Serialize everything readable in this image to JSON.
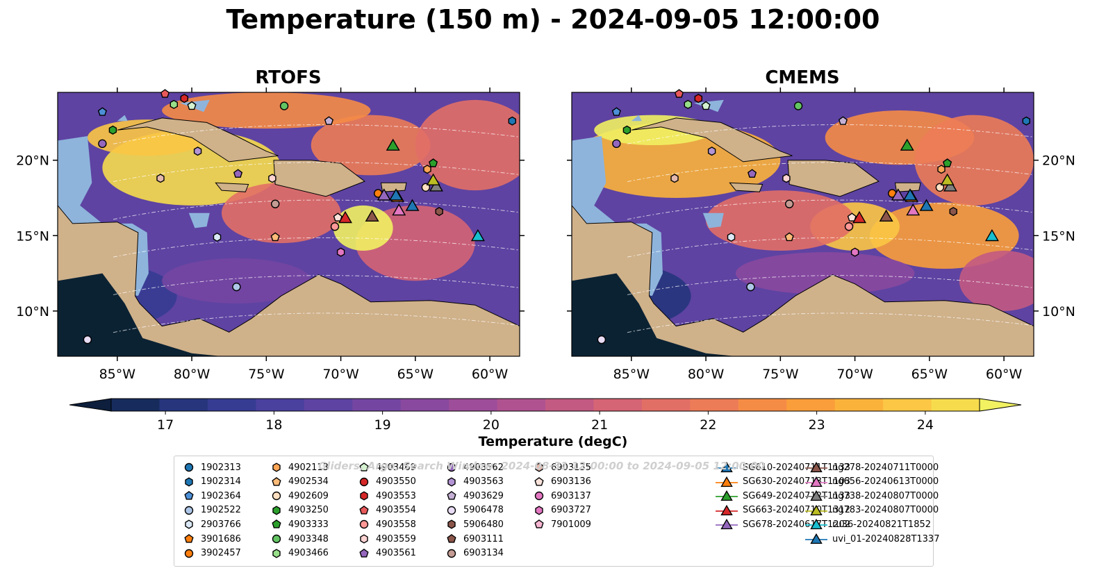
{
  "title": "Temperature (150 m) - 2024-09-05 12:00:00",
  "panels": [
    {
      "title": "RTOFS"
    },
    {
      "title": "CMEMS"
    }
  ],
  "lon_ticks": [
    "85°W",
    "80°W",
    "75°W",
    "70°W",
    "65°W",
    "60°W"
  ],
  "lat_ticks": [
    "20°N",
    "15°N",
    "10°N"
  ],
  "map_extent": {
    "lon": [
      -89,
      -58
    ],
    "lat": [
      7,
      24.5
    ]
  },
  "colorbar": {
    "label": "Temperature (degC)",
    "ticks": [
      "17",
      "18",
      "19",
      "20",
      "21",
      "22",
      "23",
      "24"
    ],
    "range": [
      16.5,
      24.5
    ],
    "colors": [
      "#0d1f3c",
      "#172c5c",
      "#26357c",
      "#363c92",
      "#4a409d",
      "#5e43a2",
      "#7446a2",
      "#89499f",
      "#9d4d99",
      "#b05290",
      "#c25a82",
      "#d56474",
      "#e26f66",
      "#ec7c57",
      "#f58c46",
      "#f99e3b",
      "#fbb23b",
      "#fbc745",
      "#f6dc4d",
      "#f1f162"
    ]
  },
  "watermark": "Gliders, Argo, Search Window: 2024-08-31 12:00:00 to 2024-09-05 12:00:00",
  "legend": [
    {
      "label": "1902313",
      "marker": "circle",
      "color": "#1f77b4"
    },
    {
      "label": "1902314",
      "marker": "hexagon",
      "color": "#1f77b4"
    },
    {
      "label": "1902364",
      "marker": "pentagon",
      "color": "#4c8fd6"
    },
    {
      "label": "1902522",
      "marker": "circle",
      "color": "#aec7e8"
    },
    {
      "label": "2903766",
      "marker": "hexagon",
      "color": "#dbe9f6"
    },
    {
      "label": "3901686",
      "marker": "pentagon",
      "color": "#ff7f0e"
    },
    {
      "label": "3902457",
      "marker": "circle",
      "color": "#ff7f0e"
    },
    {
      "label": "4902113",
      "marker": "hexagon",
      "color": "#ffa556"
    },
    {
      "label": "4902534",
      "marker": "pentagon",
      "color": "#ffbb78"
    },
    {
      "label": "4902609",
      "marker": "circle",
      "color": "#ffe0c2"
    },
    {
      "label": "4903250",
      "marker": "hexagon",
      "color": "#2ca02c"
    },
    {
      "label": "4903333",
      "marker": "pentagon",
      "color": "#2ca02c"
    },
    {
      "label": "4903348",
      "marker": "circle",
      "color": "#63c463"
    },
    {
      "label": "4903466",
      "marker": "hexagon",
      "color": "#98df8a"
    },
    {
      "label": "4903469",
      "marker": "pentagon",
      "color": "#d5f2d0"
    },
    {
      "label": "4903550",
      "marker": "circle",
      "color": "#d62728"
    },
    {
      "label": "4903553",
      "marker": "hexagon",
      "color": "#d62728"
    },
    {
      "label": "4903554",
      "marker": "pentagon",
      "color": "#e8595a"
    },
    {
      "label": "4903558",
      "marker": "circle",
      "color": "#ff9896"
    },
    {
      "label": "4903559",
      "marker": "hexagon",
      "color": "#ffd4d3"
    },
    {
      "label": "4903561",
      "marker": "pentagon",
      "color": "#9467bd"
    },
    {
      "label": "4903562",
      "marker": "circle",
      "color": "#9467bd"
    },
    {
      "label": "4903563",
      "marker": "hexagon",
      "color": "#b394d4"
    },
    {
      "label": "4903629",
      "marker": "pentagon",
      "color": "#c5b0d5"
    },
    {
      "label": "5906478",
      "marker": "circle",
      "color": "#e9ddf5"
    },
    {
      "label": "5906480",
      "marker": "hexagon",
      "color": "#8c564b"
    },
    {
      "label": "6903111",
      "marker": "pentagon",
      "color": "#8c564b"
    },
    {
      "label": "6903134",
      "marker": "circle",
      "color": "#c49c94"
    },
    {
      "label": "6903135",
      "marker": "hexagon",
      "color": "#e3b8ad"
    },
    {
      "label": "6903136",
      "marker": "pentagon",
      "color": "#fbe3dc"
    },
    {
      "label": "6903137",
      "marker": "circle",
      "color": "#e377c2"
    },
    {
      "label": "6903727",
      "marker": "hexagon",
      "color": "#e377c2"
    },
    {
      "label": "7901009",
      "marker": "pentagon",
      "color": "#f7b6d2"
    },
    {
      "label": "SG610-20240711T1133",
      "marker": "triangle",
      "color": "#1f77b4"
    },
    {
      "label": "SG630-20240713T1103",
      "marker": "triangle",
      "color": "#ff7f0e"
    },
    {
      "label": "SG649-20240712T1133",
      "marker": "triangle",
      "color": "#2ca02c"
    },
    {
      "label": "SG663-20240710T1312",
      "marker": "triangle",
      "color": "#d62728"
    },
    {
      "label": "SG678-20240617T1202",
      "marker": "triangle",
      "color": "#9467bd"
    },
    {
      "label": "ng278-20240711T0000",
      "marker": "triangle",
      "color": "#8c564b"
    },
    {
      "label": "ng656-20240613T0000",
      "marker": "triangle",
      "color": "#e377c2"
    },
    {
      "label": "ng738-20240807T0000",
      "marker": "triangle",
      "color": "#7f7f7f"
    },
    {
      "label": "ng783-20240807T0000",
      "marker": "triangle",
      "color": "#bcbd22"
    },
    {
      "label": "ru36-20240821T1852",
      "marker": "triangle",
      "color": "#17becf"
    },
    {
      "label": "uvi_01-20240828T1337",
      "marker": "triangle",
      "color": "#1f77b4"
    }
  ],
  "stations": [
    {
      "label": "1902314",
      "lon": -58.5,
      "lat": 22.6
    },
    {
      "label": "1902364",
      "lon": -86.0,
      "lat": 23.2
    },
    {
      "label": "1902522",
      "lon": -77.0,
      "lat": 11.6
    },
    {
      "label": "2903766",
      "lon": -78.3,
      "lat": 14.9
    },
    {
      "label": "3902457",
      "lon": -67.5,
      "lat": 17.8
    },
    {
      "label": "4902113",
      "lon": -64.2,
      "lat": 19.4
    },
    {
      "label": "4902534",
      "lon": -74.4,
      "lat": 14.9
    },
    {
      "label": "4902609",
      "lon": -64.3,
      "lat": 18.2
    },
    {
      "label": "4903250",
      "lon": -85.3,
      "lat": 22.0
    },
    {
      "label": "4903333",
      "lon": -63.8,
      "lat": 19.8
    },
    {
      "label": "4903348",
      "lon": -73.8,
      "lat": 23.6
    },
    {
      "label": "4903466",
      "lon": -81.2,
      "lat": 23.7
    },
    {
      "label": "4903469",
      "lon": -80.0,
      "lat": 23.6
    },
    {
      "label": "4903553",
      "lon": -80.5,
      "lat": 24.1
    },
    {
      "label": "4903554",
      "lon": -81.8,
      "lat": 24.4
    },
    {
      "label": "4903558",
      "lon": -70.4,
      "lat": 15.6
    },
    {
      "label": "4903559",
      "lon": -74.6,
      "lat": 18.8
    },
    {
      "label": "4903561",
      "lon": -76.9,
      "lat": 19.1
    },
    {
      "label": "4903562",
      "lon": -86.0,
      "lat": 21.1
    },
    {
      "label": "4903563",
      "lon": -79.6,
      "lat": 20.6
    },
    {
      "label": "4903629",
      "lon": -70.8,
      "lat": 22.6
    },
    {
      "label": "5906478",
      "lon": -87.0,
      "lat": 8.1
    },
    {
      "label": "5906480",
      "lon": -63.4,
      "lat": 16.6
    },
    {
      "label": "6903134",
      "lon": -74.4,
      "lat": 17.1
    },
    {
      "label": "6903135",
      "lon": -82.1,
      "lat": 18.8
    },
    {
      "label": "6903136",
      "lon": -70.2,
      "lat": 16.2
    },
    {
      "label": "6903727",
      "lon": -70.0,
      "lat": 13.9
    },
    {
      "label": "SG610-20240711T1133",
      "lon": -65.2,
      "lat": 16.9
    },
    {
      "label": "SG630-20240713T1103",
      "lon": -66.2,
      "lat": 17.5
    },
    {
      "label": "SG649-20240712T1133",
      "lon": -66.5,
      "lat": 20.9
    },
    {
      "label": "SG663-20240710T1312",
      "lon": -69.7,
      "lat": 16.1
    },
    {
      "label": "SG678-20240617T1202",
      "lon": -67.1,
      "lat": 17.6
    },
    {
      "label": "ng278-20240711T0000",
      "lon": -67.9,
      "lat": 16.2
    },
    {
      "label": "ng656-20240613T0000",
      "lon": -66.1,
      "lat": 16.6
    },
    {
      "label": "ng738-20240807T0000",
      "lon": -63.6,
      "lat": 18.2
    },
    {
      "label": "ng783-20240807T0000",
      "lon": -63.8,
      "lat": 18.6
    },
    {
      "label": "ru36-20240821T1852",
      "lon": -60.8,
      "lat": 14.9
    },
    {
      "label": "uvi_01-20240828T1337",
      "lon": -66.3,
      "lat": 17.6
    }
  ]
}
